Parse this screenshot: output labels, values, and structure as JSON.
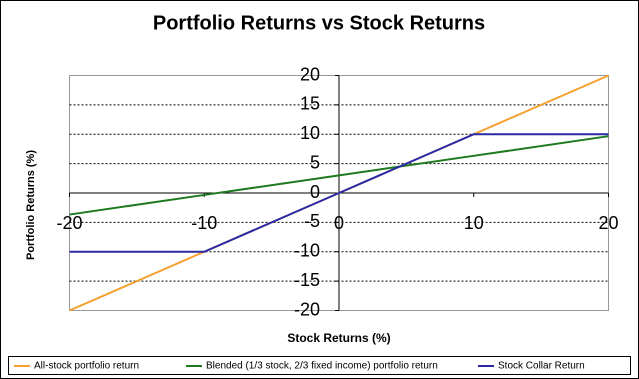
{
  "chart_data": {
    "type": "line",
    "title": "Portfolio Returns vs Stock Returns",
    "x_label": "Stock Returns (%)",
    "y_label": "Portfolio Returns (%)",
    "x": [
      -20,
      -10,
      0,
      10,
      20
    ],
    "series": [
      {
        "name": "All-stock portfolio return",
        "color": "#f5a030",
        "values": [
          -20,
          -10,
          0,
          10,
          20
        ]
      },
      {
        "name": "Blended (1/3 stock, 2/3 fixed income) portfolio return",
        "color": "#1f7a1f",
        "values": [
          -3.67,
          -0.33,
          3,
          6.33,
          9.67
        ]
      },
      {
        "name": "Stock Collar Return",
        "color": "#2a2aa8",
        "values": [
          -10,
          -10,
          0,
          10,
          10
        ]
      }
    ],
    "xlim": [
      -20,
      20
    ],
    "xticks": [
      -20,
      -10,
      0,
      10,
      20
    ],
    "ylim": [
      -20,
      20
    ],
    "yticks": [
      -20,
      -15,
      -10,
      -5,
      0,
      5,
      10,
      15,
      20
    ],
    "grid": true,
    "legend": "bottom"
  }
}
